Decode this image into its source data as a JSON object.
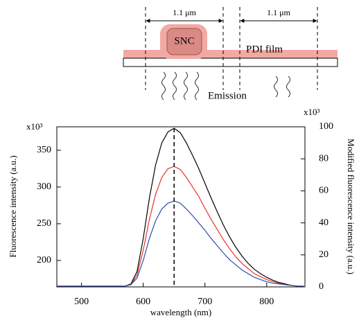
{
  "diagram": {
    "width_label_left": "1.1 μm",
    "width_label_right": "1.1 μm",
    "crystal_label": "SNC",
    "film_label": "PDI film",
    "emission_label": "Emission"
  },
  "chart_data": {
    "type": "line",
    "x_label": "wavelength (nm)",
    "y_label": "Fluorescence intensity (a.u.)",
    "y2_label": "Modified fluorescence intensity (a.u.)",
    "y_multiplier": "x10³",
    "y2_multiplier": "x10³",
    "x": [
      460,
      470,
      480,
      490,
      500,
      510,
      520,
      530,
      540,
      550,
      560,
      570,
      580,
      590,
      600,
      610,
      620,
      630,
      640,
      650,
      660,
      670,
      680,
      690,
      700,
      710,
      720,
      730,
      740,
      750,
      760,
      770,
      780,
      790,
      800,
      810,
      820,
      830,
      840,
      850,
      860
    ],
    "series": [
      {
        "color": "#000000",
        "values": [
          165,
          165,
          165,
          165,
          165,
          165,
          165,
          165,
          165,
          165,
          165,
          165,
          168,
          185,
          230,
          285,
          330,
          360,
          375,
          380,
          374,
          360,
          343,
          325,
          305,
          285,
          266,
          248,
          232,
          218,
          206,
          196,
          188,
          182,
          177,
          173,
          170,
          168,
          166,
          165,
          165
        ]
      },
      {
        "color": "#e8322e",
        "values": [
          165,
          165,
          165,
          165,
          165,
          165,
          165,
          165,
          165,
          165,
          165,
          165,
          167,
          180,
          214,
          256,
          290,
          313,
          325,
          328,
          324,
          313,
          300,
          287,
          271,
          256,
          242,
          228,
          216,
          205,
          196,
          189,
          182,
          178,
          174,
          171,
          169,
          167,
          166,
          165,
          165
        ]
      },
      {
        "color": "#2f4fa8",
        "values": [
          165,
          165,
          165,
          165,
          165,
          165,
          165,
          165,
          165,
          165,
          165,
          165,
          167,
          176,
          200,
          230,
          254,
          270,
          278,
          281,
          278,
          270,
          261,
          251,
          241,
          230,
          220,
          210,
          201,
          194,
          187,
          182,
          177,
          174,
          171,
          169,
          168,
          167,
          166,
          165,
          165
        ]
      }
    ],
    "vline": 650,
    "xlim": [
      460,
      862
    ],
    "xticks": [
      500,
      600,
      700,
      800
    ],
    "ylim": [
      164,
      382
    ],
    "yticks": [
      200,
      250,
      300,
      350
    ],
    "y2lim": [
      0,
      100
    ],
    "y2ticks": [
      0,
      20,
      40,
      60,
      80,
      100
    ]
  }
}
